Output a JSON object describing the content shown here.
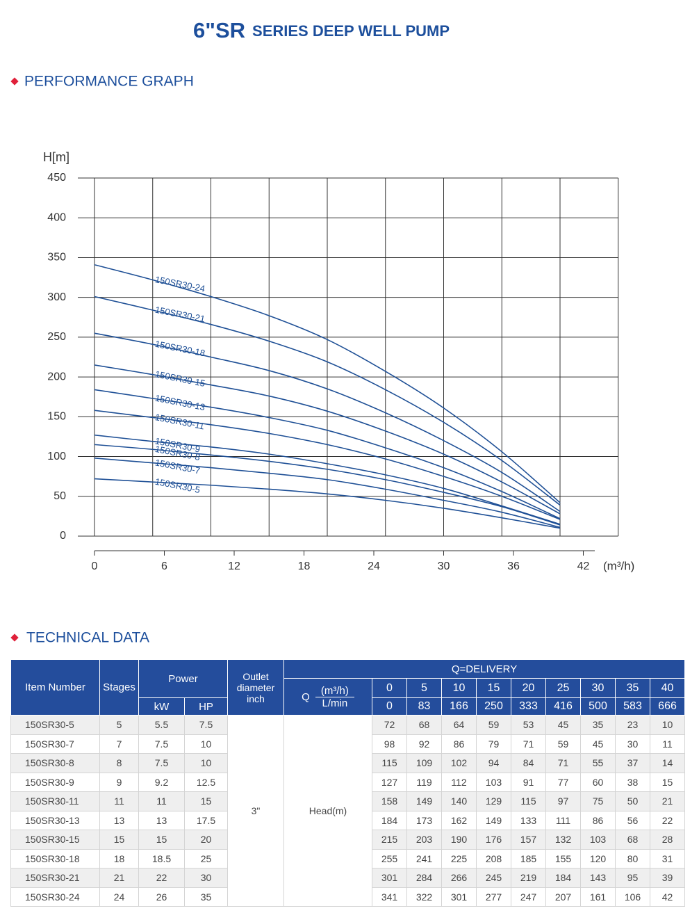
{
  "title": {
    "main": "6\"SR",
    "rest": "SERIES DEEP WELL PUMP"
  },
  "sections": [
    "PERFORMANCE GRAPH",
    "TECHNICAL DATA"
  ],
  "chart_data": {
    "type": "line",
    "ylabel": "H[m]",
    "xlabel": "(m³/h)",
    "color": "#1f5096",
    "grid": true,
    "x": [
      0,
      5,
      10,
      15,
      20,
      25,
      30,
      35,
      40
    ],
    "xlim": [
      0,
      45
    ],
    "ylim": [
      0,
      450
    ],
    "xticks": [
      0,
      6,
      12,
      18,
      24,
      30,
      36,
      42
    ],
    "xgrid": [
      0,
      5,
      10,
      15,
      20,
      25,
      30,
      35,
      40,
      45
    ],
    "yticks": [
      0,
      50,
      100,
      150,
      200,
      250,
      300,
      350,
      400,
      450
    ],
    "series": [
      {
        "name": "150SR30-5",
        "values": [
          72,
          68,
          64,
          59,
          53,
          45,
          35,
          23,
          10
        ]
      },
      {
        "name": "150SR30-7",
        "values": [
          98,
          92,
          86,
          79,
          71,
          59,
          45,
          30,
          11
        ]
      },
      {
        "name": "150SR30-8",
        "values": [
          115,
          109,
          102,
          94,
          84,
          71,
          55,
          37,
          14
        ]
      },
      {
        "name": "150SR30-9",
        "values": [
          127,
          119,
          112,
          103,
          91,
          77,
          60,
          38,
          15
        ]
      },
      {
        "name": "150SR30-11",
        "values": [
          158,
          149,
          140,
          129,
          115,
          97,
          75,
          50,
          21
        ]
      },
      {
        "name": "150SR30-13",
        "values": [
          184,
          173,
          162,
          149,
          133,
          111,
          86,
          56,
          22
        ]
      },
      {
        "name": "150SR30-15",
        "values": [
          215,
          203,
          190,
          176,
          157,
          132,
          103,
          68,
          28
        ]
      },
      {
        "name": "150SR30-18",
        "values": [
          255,
          241,
          225,
          208,
          185,
          155,
          120,
          80,
          31
        ]
      },
      {
        "name": "150SR30-21",
        "values": [
          301,
          284,
          266,
          245,
          219,
          184,
          143,
          95,
          39
        ]
      },
      {
        "name": "150SR30-24",
        "values": [
          341,
          322,
          301,
          277,
          247,
          207,
          161,
          106,
          42
        ]
      }
    ]
  },
  "table": {
    "headers": {
      "item": "Item Number",
      "stages": "Stages",
      "power": "Power",
      "kw": "kW",
      "hp": "HP",
      "outlet": "Outlet diameter inch",
      "delivery": "Q=DELIVERY",
      "q": "Q",
      "qunit": "(m³/h)",
      "lmin": "L/min",
      "head": "Head(m)"
    },
    "lmin_values": [
      0,
      83,
      166,
      250,
      333,
      416,
      500,
      583,
      666
    ],
    "outlet_value": "3\"",
    "rows": [
      {
        "stages": 5,
        "kw": 5.5,
        "hp": 7.5
      },
      {
        "stages": 7,
        "kw": 7.5,
        "hp": 10
      },
      {
        "stages": 8,
        "kw": 7.5,
        "hp": 10
      },
      {
        "stages": 9,
        "kw": 9.2,
        "hp": 12.5
      },
      {
        "stages": 11,
        "kw": 11,
        "hp": 15
      },
      {
        "stages": 13,
        "kw": 13,
        "hp": 17.5
      },
      {
        "stages": 15,
        "kw": 15,
        "hp": 20
      },
      {
        "stages": 18,
        "kw": 18.5,
        "hp": 25
      },
      {
        "stages": 21,
        "kw": 22,
        "hp": 30
      },
      {
        "stages": 24,
        "kw": 26,
        "hp": 35
      }
    ]
  }
}
